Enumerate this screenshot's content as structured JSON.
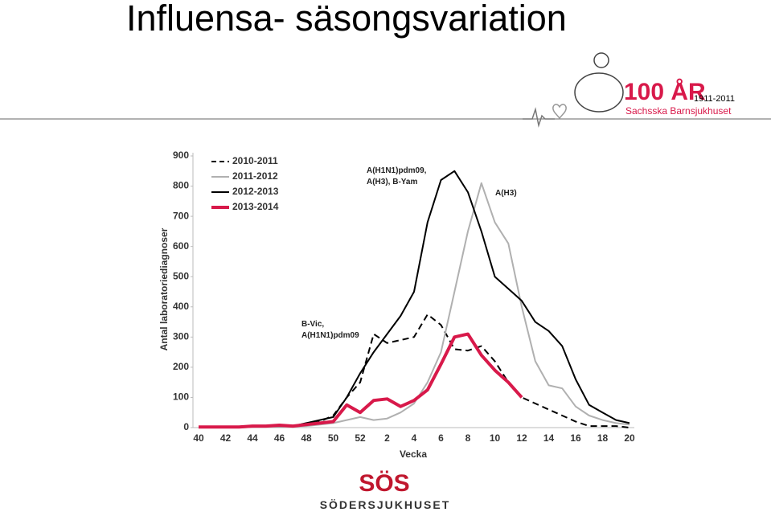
{
  "slide": {
    "title": "Influensa- säsongsvariation",
    "logo_top": {
      "mark": "100 ÅR",
      "years": "1911-2011",
      "name": "Sachsska Barnsjukhuset"
    },
    "logo_bottom": {
      "mark": "SÖS",
      "name": "SÖDERSJUKHUSET"
    }
  },
  "chart_data": {
    "type": "line",
    "x_label": "Vecka",
    "y_label": "Antal laboratoriediagnoser",
    "categories": [
      40,
      null,
      42,
      null,
      44,
      null,
      46,
      null,
      48,
      null,
      50,
      null,
      52,
      null,
      2,
      null,
      4,
      null,
      6,
      null,
      8,
      null,
      10,
      null,
      12,
      null,
      14,
      null,
      16,
      null,
      18,
      null,
      20
    ],
    "ylim": [
      0,
      900
    ],
    "yticks": [
      0,
      100,
      200,
      300,
      400,
      500,
      600,
      700,
      800,
      900
    ],
    "legend": "top-left",
    "grid": false,
    "series": [
      {
        "name": "2010-2011",
        "color": "#000000",
        "style": "dashed",
        "values": [
          0,
          0,
          0,
          2,
          3,
          4,
          5,
          5,
          10,
          20,
          40,
          100,
          150,
          310,
          280,
          290,
          300,
          375,
          340,
          260,
          255,
          270,
          220,
          150,
          100,
          80,
          60,
          40,
          20,
          5,
          5,
          5,
          0
        ]
      },
      {
        "name": "2011-2012",
        "color": "#b0b0b0",
        "style": "solid",
        "values": [
          0,
          0,
          0,
          0,
          2,
          3,
          3,
          4,
          5,
          10,
          15,
          25,
          35,
          25,
          30,
          50,
          80,
          150,
          250,
          450,
          650,
          810,
          680,
          610,
          400,
          220,
          140,
          130,
          70,
          40,
          25,
          15,
          10
        ]
      },
      {
        "name": "2012-2013",
        "color": "#000000",
        "style": "solid",
        "values": [
          2,
          2,
          2,
          3,
          4,
          5,
          5,
          5,
          15,
          25,
          35,
          100,
          180,
          250,
          310,
          370,
          450,
          680,
          820,
          850,
          780,
          650,
          500,
          460,
          420,
          350,
          320,
          270,
          160,
          75,
          50,
          25,
          15
        ]
      },
      {
        "name": "2013-2014",
        "color": "#d8194a",
        "style": "solid",
        "values": [
          2,
          2,
          2,
          2,
          5,
          5,
          8,
          5,
          10,
          15,
          20,
          75,
          50,
          90,
          95,
          70,
          90,
          125,
          210,
          300,
          310,
          240,
          190,
          150,
          100,
          null,
          null,
          null,
          null,
          null,
          null,
          null,
          null
        ]
      }
    ],
    "annotations": [
      {
        "lines": [
          "A(H1N1)pdm09,",
          "A(H3), B-Yam"
        ]
      },
      {
        "lines": [
          "A(H3)"
        ]
      },
      {
        "lines": [
          "B-Vic,",
          "A(H1N1)pdm09"
        ]
      }
    ]
  }
}
